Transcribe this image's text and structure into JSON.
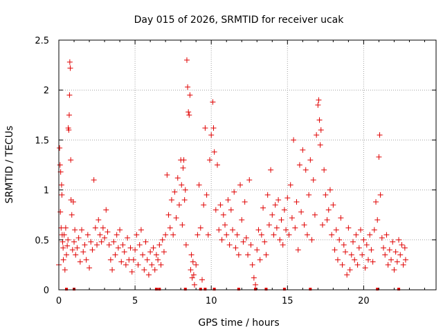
{
  "chart_data": {
    "type": "scatter",
    "title": "Day 015 of 2026, SRMTID for receiver ucak",
    "xlabel": "GPS time / hours",
    "ylabel": "SRMTID / TECUs",
    "xlim": [
      0,
      24.75
    ],
    "ylim": [
      0,
      2.5
    ],
    "xticks": [
      0,
      5,
      10,
      15,
      20
    ],
    "xtick_labels": [
      "0",
      "5",
      "10",
      "15",
      "20"
    ],
    "yticks": [
      0,
      0.5,
      1,
      1.5,
      2,
      2.5
    ],
    "ytick_labels": [
      "0",
      "0.5",
      "1",
      "1.5",
      "2",
      "2.5"
    ],
    "grid": true,
    "marker": "plus",
    "color": "#e00000",
    "series": [
      {
        "name": "SRMTID",
        "points": [
          [
            0.0,
            0.25
          ],
          [
            0.05,
            1.42
          ],
          [
            0.08,
            1.25
          ],
          [
            0.1,
            0.78
          ],
          [
            0.12,
            1.18
          ],
          [
            0.15,
            0.62
          ],
          [
            0.18,
            1.05
          ],
          [
            0.2,
            0.95
          ],
          [
            0.22,
            0.55
          ],
          [
            0.25,
            0.48
          ],
          [
            0.28,
            0.42
          ],
          [
            0.3,
            0.3
          ],
          [
            0.35,
            0.55
          ],
          [
            0.4,
            0.2
          ],
          [
            0.45,
            0.62
          ],
          [
            0.5,
            0.35
          ],
          [
            0.55,
            0.44
          ],
          [
            0.6,
            0.5
          ],
          [
            0.62,
            1.62
          ],
          [
            0.65,
            1.6
          ],
          [
            0.68,
            1.75
          ],
          [
            0.7,
            1.95
          ],
          [
            0.72,
            2.28
          ],
          [
            0.75,
            2.22
          ],
          [
            0.78,
            1.3
          ],
          [
            0.8,
            0.9
          ],
          [
            0.85,
            0.75
          ],
          [
            0.9,
            0.4
          ],
          [
            0.95,
            0.88
          ],
          [
            1.0,
            0.48
          ],
          [
            1.05,
            0.6
          ],
          [
            1.1,
            0.35
          ],
          [
            1.2,
            0.42
          ],
          [
            1.3,
            0.52
          ],
          [
            1.4,
            0.28
          ],
          [
            1.5,
            0.6
          ],
          [
            1.6,
            0.38
          ],
          [
            1.7,
            0.45
          ],
          [
            1.8,
            0.3
          ],
          [
            1.9,
            0.55
          ],
          [
            2.0,
            0.22
          ],
          [
            2.1,
            0.48
          ],
          [
            2.2,
            0.4
          ],
          [
            2.3,
            1.1
          ],
          [
            2.4,
            0.62
          ],
          [
            2.5,
            0.45
          ],
          [
            2.6,
            0.7
          ],
          [
            2.7,
            0.55
          ],
          [
            2.8,
            0.48
          ],
          [
            2.9,
            0.62
          ],
          [
            3.0,
            0.52
          ],
          [
            3.1,
            0.8
          ],
          [
            3.2,
            0.58
          ],
          [
            3.3,
            0.45
          ],
          [
            3.4,
            0.3
          ],
          [
            3.5,
            0.2
          ],
          [
            3.6,
            0.48
          ],
          [
            3.7,
            0.35
          ],
          [
            3.8,
            0.55
          ],
          [
            3.9,
            0.42
          ],
          [
            4.0,
            0.6
          ],
          [
            4.1,
            0.28
          ],
          [
            4.2,
            0.45
          ],
          [
            4.3,
            0.38
          ],
          [
            4.4,
            0.25
          ],
          [
            4.5,
            0.52
          ],
          [
            4.6,
            0.3
          ],
          [
            4.7,
            0.42
          ],
          [
            4.8,
            0.18
          ],
          [
            4.9,
            0.3
          ],
          [
            5.0,
            0.4
          ],
          [
            5.1,
            0.55
          ],
          [
            5.2,
            0.25
          ],
          [
            5.3,
            0.45
          ],
          [
            5.4,
            0.6
          ],
          [
            5.5,
            0.35
          ],
          [
            5.6,
            0.2
          ],
          [
            5.7,
            0.48
          ],
          [
            5.8,
            0.3
          ],
          [
            5.9,
            0.15
          ],
          [
            6.0,
            0.38
          ],
          [
            6.1,
            0.25
          ],
          [
            6.2,
            0.42
          ],
          [
            6.3,
            0.2
          ],
          [
            6.4,
            0.35
          ],
          [
            6.5,
            0.3
          ],
          [
            6.6,
            0.45
          ],
          [
            6.7,
            0.25
          ],
          [
            6.8,
            0.5
          ],
          [
            6.9,
            0.38
          ],
          [
            7.0,
            0.55
          ],
          [
            7.1,
            1.15
          ],
          [
            7.2,
            0.75
          ],
          [
            7.3,
            0.62
          ],
          [
            7.4,
            0.9
          ],
          [
            7.5,
            0.55
          ],
          [
            7.6,
            0.98
          ],
          [
            7.7,
            0.72
          ],
          [
            7.8,
            1.12
          ],
          [
            7.9,
            0.85
          ],
          [
            8.0,
            1.3
          ],
          [
            8.05,
            1.05
          ],
          [
            8.1,
            0.65
          ],
          [
            8.15,
            1.22
          ],
          [
            8.2,
            1.3
          ],
          [
            8.25,
            0.9
          ],
          [
            8.3,
            1.0
          ],
          [
            8.35,
            0.45
          ],
          [
            8.4,
            2.3
          ],
          [
            8.45,
            2.03
          ],
          [
            8.5,
            1.78
          ],
          [
            8.55,
            1.75
          ],
          [
            8.6,
            1.95
          ],
          [
            8.65,
            0.2
          ],
          [
            8.7,
            0.35
          ],
          [
            8.75,
            0.12
          ],
          [
            8.8,
            0.28
          ],
          [
            8.85,
            0.15
          ],
          [
            8.9,
            0.05
          ],
          [
            9.0,
            0.25
          ],
          [
            9.1,
            0.55
          ],
          [
            9.2,
            1.05
          ],
          [
            9.3,
            0.62
          ],
          [
            9.4,
            0.1
          ],
          [
            9.5,
            0.85
          ],
          [
            9.6,
            1.62
          ],
          [
            9.7,
            0.95
          ],
          [
            9.8,
            0.55
          ],
          [
            9.9,
            1.3
          ],
          [
            10.0,
            1.55
          ],
          [
            10.1,
            1.88
          ],
          [
            10.15,
            1.62
          ],
          [
            10.2,
            1.38
          ],
          [
            10.3,
            0.8
          ],
          [
            10.4,
            1.25
          ],
          [
            10.5,
            0.6
          ],
          [
            10.6,
            0.85
          ],
          [
            10.7,
            0.5
          ],
          [
            10.8,
            0.75
          ],
          [
            10.9,
            0.65
          ],
          [
            11.0,
            0.55
          ],
          [
            11.1,
            0.9
          ],
          [
            11.2,
            0.45
          ],
          [
            11.3,
            0.8
          ],
          [
            11.4,
            0.6
          ],
          [
            11.5,
            0.98
          ],
          [
            11.6,
            0.42
          ],
          [
            11.7,
            0.55
          ],
          [
            11.8,
            0.35
          ],
          [
            11.9,
            1.05
          ],
          [
            12.0,
            0.7
          ],
          [
            12.1,
            0.48
          ],
          [
            12.2,
            0.88
          ],
          [
            12.3,
            0.52
          ],
          [
            12.4,
            0.35
          ],
          [
            12.5,
            1.1
          ],
          [
            12.6,
            0.45
          ],
          [
            12.7,
            0.25
          ],
          [
            12.8,
            0.12
          ],
          [
            12.9,
            0.05
          ],
          [
            13.0,
            0.4
          ],
          [
            13.1,
            0.6
          ],
          [
            13.2,
            0.3
          ],
          [
            13.3,
            0.55
          ],
          [
            13.4,
            0.82
          ],
          [
            13.5,
            0.48
          ],
          [
            13.6,
            0.35
          ],
          [
            13.7,
            0.95
          ],
          [
            13.8,
            0.65
          ],
          [
            13.9,
            1.2
          ],
          [
            14.0,
            0.75
          ],
          [
            14.1,
            0.55
          ],
          [
            14.2,
            0.85
          ],
          [
            14.3,
            0.62
          ],
          [
            14.4,
            0.9
          ],
          [
            14.5,
            0.5
          ],
          [
            14.6,
            0.7
          ],
          [
            14.7,
            0.45
          ],
          [
            14.8,
            0.8
          ],
          [
            14.9,
            0.6
          ],
          [
            15.0,
            0.92
          ],
          [
            15.1,
            0.55
          ],
          [
            15.2,
            1.05
          ],
          [
            15.3,
            0.72
          ],
          [
            15.4,
            1.5
          ],
          [
            15.5,
            0.62
          ],
          [
            15.6,
            0.88
          ],
          [
            15.7,
            0.4
          ],
          [
            15.8,
            1.25
          ],
          [
            15.9,
            0.78
          ],
          [
            16.0,
            1.4
          ],
          [
            16.1,
            0.65
          ],
          [
            16.2,
            1.2
          ],
          [
            16.3,
            0.55
          ],
          [
            16.4,
            0.95
          ],
          [
            16.5,
            1.3
          ],
          [
            16.6,
            0.5
          ],
          [
            16.7,
            1.1
          ],
          [
            16.8,
            0.75
          ],
          [
            16.9,
            1.55
          ],
          [
            17.0,
            1.85
          ],
          [
            17.05,
            1.9
          ],
          [
            17.1,
            1.7
          ],
          [
            17.15,
            1.45
          ],
          [
            17.2,
            1.6
          ],
          [
            17.3,
            0.65
          ],
          [
            17.4,
            1.2
          ],
          [
            17.5,
            0.95
          ],
          [
            17.6,
            0.7
          ],
          [
            17.7,
            0.8
          ],
          [
            17.8,
            1.0
          ],
          [
            17.9,
            0.55
          ],
          [
            18.0,
            0.85
          ],
          [
            18.1,
            0.4
          ],
          [
            18.2,
            0.6
          ],
          [
            18.3,
            0.3
          ],
          [
            18.4,
            0.5
          ],
          [
            18.5,
            0.72
          ],
          [
            18.6,
            0.25
          ],
          [
            18.7,
            0.45
          ],
          [
            18.8,
            0.38
          ],
          [
            18.9,
            0.15
          ],
          [
            19.0,
            0.62
          ],
          [
            19.1,
            0.2
          ],
          [
            19.2,
            0.35
          ],
          [
            19.3,
            0.48
          ],
          [
            19.4,
            0.3
          ],
          [
            19.5,
            0.55
          ],
          [
            19.6,
            0.25
          ],
          [
            19.7,
            0.42
          ],
          [
            19.8,
            0.6
          ],
          [
            19.9,
            0.35
          ],
          [
            20.0,
            0.5
          ],
          [
            20.1,
            0.22
          ],
          [
            20.2,
            0.45
          ],
          [
            20.3,
            0.3
          ],
          [
            20.4,
            0.55
          ],
          [
            20.5,
            0.4
          ],
          [
            20.6,
            0.28
          ],
          [
            20.7,
            0.6
          ],
          [
            20.8,
            0.88
          ],
          [
            20.9,
            0.7
          ],
          [
            21.0,
            1.33
          ],
          [
            21.05,
            1.55
          ],
          [
            21.1,
            0.95
          ],
          [
            21.2,
            0.52
          ],
          [
            21.3,
            0.42
          ],
          [
            21.4,
            0.35
          ],
          [
            21.5,
            0.55
          ],
          [
            21.6,
            0.25
          ],
          [
            21.7,
            0.4
          ],
          [
            21.8,
            0.3
          ],
          [
            21.9,
            0.48
          ],
          [
            22.0,
            0.2
          ],
          [
            22.1,
            0.38
          ],
          [
            22.2,
            0.28
          ],
          [
            22.3,
            0.5
          ],
          [
            22.4,
            0.35
          ],
          [
            22.5,
            0.45
          ],
          [
            22.6,
            0.25
          ],
          [
            22.7,
            0.42
          ],
          [
            22.75,
            0.3
          ]
        ]
      }
    ],
    "zero_points_x": [
      0.5,
      1.0,
      6.4,
      6.6,
      8.3,
      9.3,
      9.6,
      10.2,
      11.8,
      12.9,
      13.6,
      14.8,
      16.5,
      20.9,
      22.3
    ]
  }
}
